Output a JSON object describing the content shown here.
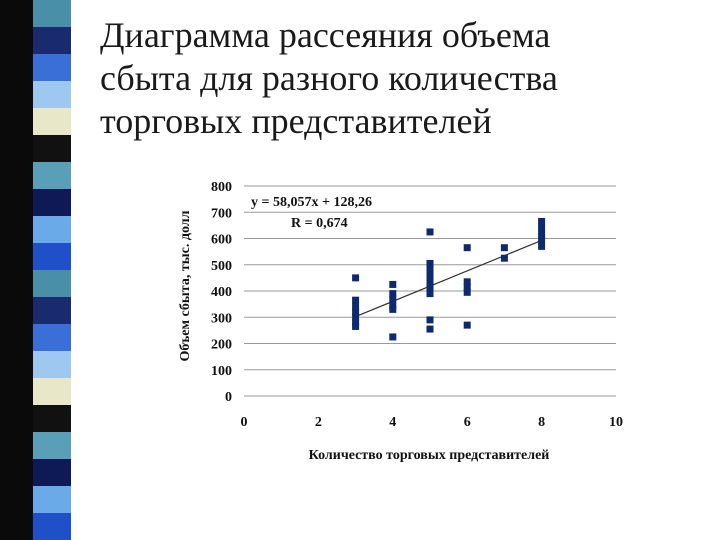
{
  "slide": {
    "title_lines": [
      "Диаграмма рассеяния объема",
      "сбыта для разного количества",
      "торговых представителей"
    ],
    "stripe_colors": [
      "#4a8fa8",
      "#1a2a6e",
      "#3a6fd8",
      "#9ec8f0",
      "#e8e8c8",
      "#111111",
      "#5a9fb8",
      "#0e1a55",
      "#6aaae8",
      "#2050c8"
    ]
  },
  "chart_data": {
    "type": "scatter",
    "xlabel": "Количество торговых представителей",
    "ylabel": "Объем сбыта, тыс. долл",
    "xlim": [
      0,
      10
    ],
    "ylim": [
      0,
      800
    ],
    "xticks": [
      0,
      2,
      4,
      6,
      8,
      10
    ],
    "yticks": [
      0,
      100,
      200,
      300,
      400,
      500,
      600,
      700,
      800
    ],
    "grid": "horizontal",
    "marker_color": "#0d2a6e",
    "points": [
      [
        3,
        450
      ],
      [
        3,
        365
      ],
      [
        3,
        340
      ],
      [
        3,
        320
      ],
      [
        3,
        300
      ],
      [
        3,
        280
      ],
      [
        3,
        265
      ],
      [
        4,
        425
      ],
      [
        4,
        390
      ],
      [
        4,
        370
      ],
      [
        4,
        345
      ],
      [
        4,
        330
      ],
      [
        4,
        225
      ],
      [
        5,
        625
      ],
      [
        5,
        505
      ],
      [
        5,
        480
      ],
      [
        5,
        455
      ],
      [
        5,
        435
      ],
      [
        5,
        415
      ],
      [
        5,
        390
      ],
      [
        5,
        290
      ],
      [
        5,
        255
      ],
      [
        6,
        565
      ],
      [
        6,
        435
      ],
      [
        6,
        415
      ],
      [
        6,
        395
      ],
      [
        6,
        270
      ],
      [
        7,
        565
      ],
      [
        7,
        525
      ],
      [
        8,
        665
      ],
      [
        8,
        640
      ],
      [
        8,
        615
      ],
      [
        8,
        595
      ],
      [
        8,
        570
      ]
    ],
    "trendline": {
      "equation": "y = 58,057x + 128,26",
      "r_label": "R = 0,674",
      "slope": 58.057,
      "intercept": 128.26,
      "x_range": [
        3,
        8
      ]
    }
  }
}
